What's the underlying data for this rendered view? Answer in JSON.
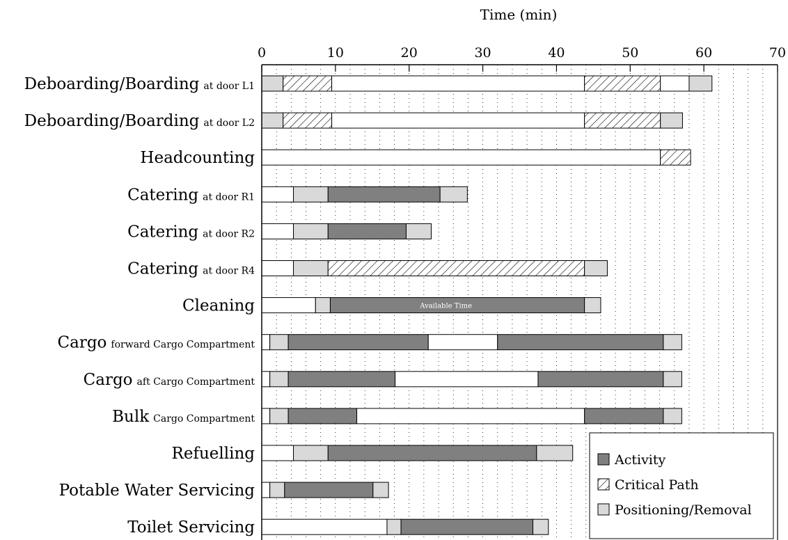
{
  "chart_data": {
    "type": "gantt",
    "xlabel": "Time (min)",
    "xlim": [
      0,
      70
    ],
    "xticks": [
      0,
      10,
      20,
      30,
      40,
      50,
      60,
      70
    ],
    "minor_grid_step": 2,
    "grid": "vertical dotted",
    "legend_position": "bottom-right",
    "colors": {
      "activity": "#808080",
      "positioning": "#d9d9d9",
      "idle": "#ffffff",
      "critical_hatch": "#000000",
      "outline": "#000000"
    },
    "legend": [
      {
        "type": "activity",
        "label": "Activity"
      },
      {
        "type": "critical",
        "label": "Critical Path"
      },
      {
        "type": "positioning",
        "label": "Positioning/Removal"
      }
    ],
    "annotations": [
      {
        "row": 6,
        "text": "Available Time",
        "x": 25
      }
    ],
    "rows": [
      {
        "name": "Deboarding/Boarding",
        "sub": "at door L1",
        "segments": [
          {
            "start": 0,
            "end": 2.9,
            "type": "positioning"
          },
          {
            "start": 2.9,
            "end": 9.5,
            "type": "critical"
          },
          {
            "start": 9.5,
            "end": 43.8,
            "type": "idle"
          },
          {
            "start": 43.8,
            "end": 54.1,
            "type": "critical"
          },
          {
            "start": 54.1,
            "end": 58,
            "type": "idle"
          },
          {
            "start": 58,
            "end": 61.1,
            "type": "positioning"
          }
        ]
      },
      {
        "name": "Deboarding/Boarding",
        "sub": "at door L2",
        "segments": [
          {
            "start": 0,
            "end": 2.9,
            "type": "positioning"
          },
          {
            "start": 2.9,
            "end": 9.5,
            "type": "critical"
          },
          {
            "start": 9.5,
            "end": 43.8,
            "type": "idle"
          },
          {
            "start": 43.8,
            "end": 54.1,
            "type": "critical"
          },
          {
            "start": 54.1,
            "end": 57.1,
            "type": "positioning"
          }
        ]
      },
      {
        "name": "Headcounting",
        "sub": "",
        "segments": [
          {
            "start": 0,
            "end": 54.1,
            "type": "idle"
          },
          {
            "start": 54.1,
            "end": 58.2,
            "type": "critical"
          }
        ]
      },
      {
        "name": "Catering",
        "sub": "at door R1",
        "segments": [
          {
            "start": 0,
            "end": 4.3,
            "type": "idle"
          },
          {
            "start": 4.3,
            "end": 9,
            "type": "positioning"
          },
          {
            "start": 9,
            "end": 24.2,
            "type": "activity"
          },
          {
            "start": 24.2,
            "end": 27.9,
            "type": "positioning"
          }
        ]
      },
      {
        "name": "Catering",
        "sub": "at door R2",
        "segments": [
          {
            "start": 0,
            "end": 4.3,
            "type": "idle"
          },
          {
            "start": 4.3,
            "end": 9,
            "type": "positioning"
          },
          {
            "start": 9,
            "end": 19.6,
            "type": "activity"
          },
          {
            "start": 19.6,
            "end": 23,
            "type": "positioning"
          }
        ]
      },
      {
        "name": "Catering",
        "sub": "at door R4",
        "segments": [
          {
            "start": 0,
            "end": 4.3,
            "type": "idle"
          },
          {
            "start": 4.3,
            "end": 9,
            "type": "positioning"
          },
          {
            "start": 9,
            "end": 43.8,
            "type": "critical"
          },
          {
            "start": 43.8,
            "end": 46.9,
            "type": "positioning"
          }
        ]
      },
      {
        "name": "Cleaning",
        "sub": "",
        "segments": [
          {
            "start": 0,
            "end": 7.3,
            "type": "idle"
          },
          {
            "start": 7.3,
            "end": 9.3,
            "type": "positioning"
          },
          {
            "start": 9.3,
            "end": 43.8,
            "type": "activity"
          },
          {
            "start": 43.8,
            "end": 46,
            "type": "positioning"
          }
        ]
      },
      {
        "name": "Cargo",
        "sub": "forward Cargo Compartment",
        "segments": [
          {
            "start": 0,
            "end": 1.1,
            "type": "idle"
          },
          {
            "start": 1.1,
            "end": 3.6,
            "type": "positioning"
          },
          {
            "start": 3.6,
            "end": 22.6,
            "type": "activity"
          },
          {
            "start": 22.6,
            "end": 32,
            "type": "idle"
          },
          {
            "start": 32,
            "end": 54.5,
            "type": "activity"
          },
          {
            "start": 54.5,
            "end": 57,
            "type": "positioning"
          }
        ]
      },
      {
        "name": "Cargo",
        "sub": "aft Cargo Compartment",
        "segments": [
          {
            "start": 0,
            "end": 1.1,
            "type": "idle"
          },
          {
            "start": 1.1,
            "end": 3.6,
            "type": "positioning"
          },
          {
            "start": 3.6,
            "end": 18.1,
            "type": "activity"
          },
          {
            "start": 18.1,
            "end": 37.5,
            "type": "idle"
          },
          {
            "start": 37.5,
            "end": 54.5,
            "type": "activity"
          },
          {
            "start": 54.5,
            "end": 57,
            "type": "positioning"
          }
        ]
      },
      {
        "name": "Bulk",
        "sub": "Cargo Compartment",
        "segments": [
          {
            "start": 0,
            "end": 1.1,
            "type": "idle"
          },
          {
            "start": 1.1,
            "end": 3.6,
            "type": "positioning"
          },
          {
            "start": 3.6,
            "end": 12.9,
            "type": "activity"
          },
          {
            "start": 12.9,
            "end": 43.8,
            "type": "idle"
          },
          {
            "start": 43.8,
            "end": 54.5,
            "type": "activity"
          },
          {
            "start": 54.5,
            "end": 57,
            "type": "positioning"
          }
        ]
      },
      {
        "name": "Refuelling",
        "sub": "",
        "segments": [
          {
            "start": 0,
            "end": 4.3,
            "type": "idle"
          },
          {
            "start": 4.3,
            "end": 9,
            "type": "positioning"
          },
          {
            "start": 9,
            "end": 37.3,
            "type": "activity"
          },
          {
            "start": 37.3,
            "end": 42.2,
            "type": "positioning"
          }
        ]
      },
      {
        "name": "Potable Water Servicing",
        "sub": "",
        "segments": [
          {
            "start": 0,
            "end": 1.1,
            "type": "idle"
          },
          {
            "start": 1.1,
            "end": 3.1,
            "type": "positioning"
          },
          {
            "start": 3.1,
            "end": 15.1,
            "type": "activity"
          },
          {
            "start": 15.1,
            "end": 17.2,
            "type": "positioning"
          }
        ]
      },
      {
        "name": "Toilet Servicing",
        "sub": "",
        "segments": [
          {
            "start": 0,
            "end": 17,
            "type": "idle"
          },
          {
            "start": 17,
            "end": 18.9,
            "type": "positioning"
          },
          {
            "start": 18.9,
            "end": 36.8,
            "type": "activity"
          },
          {
            "start": 36.8,
            "end": 38.9,
            "type": "positioning"
          }
        ]
      }
    ]
  }
}
